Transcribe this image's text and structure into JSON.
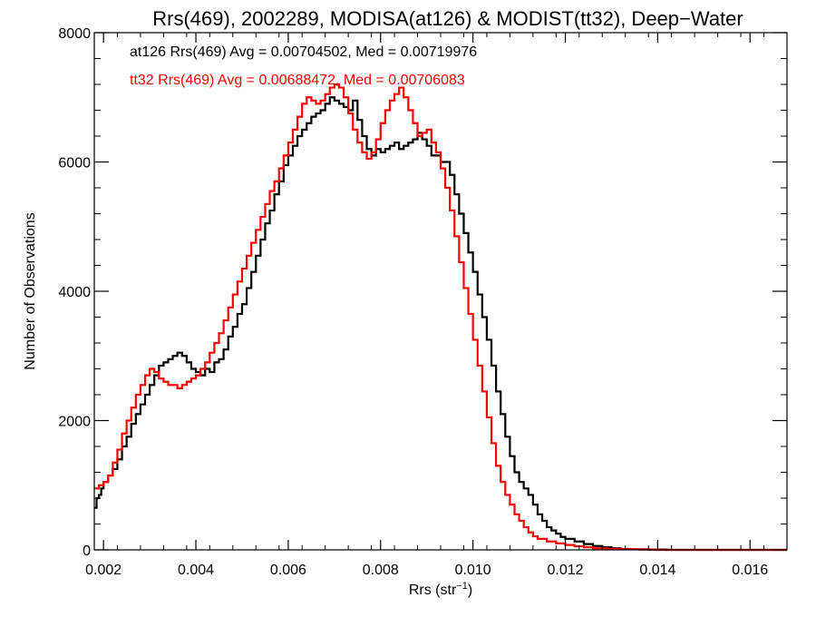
{
  "chart_data": {
    "type": "line",
    "step": true,
    "title": "Rrs(469), 2002289, MODISA(at126) & MODIST(tt32), Deep−Water",
    "xlabel": "Rrs (str",
    "xlabel_sup": "−1",
    "xlabel_suffix": ")",
    "ylabel": "Number of Observations",
    "xlim": [
      0.0018,
      0.0168
    ],
    "ylim": [
      0,
      8000
    ],
    "xticks": [
      0.002,
      0.004,
      0.006,
      0.008,
      0.01,
      0.012,
      0.014,
      0.016
    ],
    "xtick_labels": [
      "0.002",
      "0.004",
      "0.006",
      "0.008",
      "0.010",
      "0.012",
      "0.014",
      "0.016"
    ],
    "yticks": [
      0,
      2000,
      4000,
      6000,
      8000
    ],
    "ytick_labels": [
      "0",
      "2000",
      "4000",
      "6000",
      "8000"
    ],
    "grid": false,
    "legend": "top-left",
    "annotations": [
      {
        "text": "at126 Rrs(469) Avg = 0.00704502, Med = 0.00719976",
        "color": "#000000"
      },
      {
        "text": "tt32 Rrs(469) Avg = 0.00688472, Med = 0.00706083",
        "color": "#ff0000"
      }
    ],
    "series": [
      {
        "color": "#000000",
        "points": [
          [
            0.0018,
            650
          ],
          [
            0.00185,
            800
          ],
          [
            0.0019,
            850
          ],
          [
            0.00195,
            950
          ],
          [
            0.002,
            1050
          ],
          [
            0.0021,
            1150
          ],
          [
            0.0022,
            1250
          ],
          [
            0.0023,
            1400
          ],
          [
            0.0024,
            1600
          ],
          [
            0.0025,
            1750
          ],
          [
            0.0026,
            1950
          ],
          [
            0.0027,
            2100
          ],
          [
            0.0028,
            2250
          ],
          [
            0.0029,
            2400
          ],
          [
            0.003,
            2550
          ],
          [
            0.0031,
            2700
          ],
          [
            0.0032,
            2850
          ],
          [
            0.0033,
            2900
          ],
          [
            0.0034,
            2950
          ],
          [
            0.0035,
            3000
          ],
          [
            0.0036,
            3050
          ],
          [
            0.0037,
            3000
          ],
          [
            0.0038,
            2900
          ],
          [
            0.0039,
            2800
          ],
          [
            0.004,
            2750
          ],
          [
            0.0041,
            2700
          ],
          [
            0.0042,
            2800
          ],
          [
            0.0043,
            2750
          ],
          [
            0.0044,
            2900
          ],
          [
            0.0045,
            2950
          ],
          [
            0.0046,
            3100
          ],
          [
            0.0047,
            3300
          ],
          [
            0.0048,
            3450
          ],
          [
            0.0049,
            3650
          ],
          [
            0.005,
            3800
          ],
          [
            0.0051,
            4050
          ],
          [
            0.0052,
            4300
          ],
          [
            0.0053,
            4550
          ],
          [
            0.0054,
            4800
          ],
          [
            0.0055,
            5050
          ],
          [
            0.0056,
            5250
          ],
          [
            0.0057,
            5500
          ],
          [
            0.0058,
            5700
          ],
          [
            0.0059,
            5950
          ],
          [
            0.006,
            6100
          ],
          [
            0.0061,
            6250
          ],
          [
            0.0062,
            6400
          ],
          [
            0.0063,
            6500
          ],
          [
            0.0064,
            6600
          ],
          [
            0.0065,
            6700
          ],
          [
            0.0066,
            6750
          ],
          [
            0.0067,
            6800
          ],
          [
            0.0068,
            6900
          ],
          [
            0.0069,
            7000
          ],
          [
            0.007,
            6950
          ],
          [
            0.0071,
            6900
          ],
          [
            0.0072,
            6850
          ],
          [
            0.0073,
            6800
          ],
          [
            0.0074,
            6950
          ],
          [
            0.0075,
            6650
          ],
          [
            0.0076,
            6400
          ],
          [
            0.0077,
            6200
          ],
          [
            0.0078,
            6100
          ],
          [
            0.0079,
            6200
          ],
          [
            0.008,
            6150
          ],
          [
            0.0081,
            6200
          ],
          [
            0.0082,
            6250
          ],
          [
            0.0083,
            6300
          ],
          [
            0.0084,
            6200
          ],
          [
            0.0085,
            6250
          ],
          [
            0.0086,
            6300
          ],
          [
            0.0087,
            6350
          ],
          [
            0.0088,
            6450
          ],
          [
            0.0089,
            6350
          ],
          [
            0.009,
            6250
          ],
          [
            0.0091,
            6100
          ],
          [
            0.0092,
            6100
          ],
          [
            0.0093,
            6000
          ],
          [
            0.0094,
            6000
          ],
          [
            0.0095,
            5800
          ],
          [
            0.0096,
            5500
          ],
          [
            0.0097,
            5200
          ],
          [
            0.0098,
            4900
          ],
          [
            0.0099,
            4600
          ],
          [
            0.01,
            4300
          ],
          [
            0.0101,
            3950
          ],
          [
            0.0102,
            3600
          ],
          [
            0.0103,
            3250
          ],
          [
            0.0104,
            2850
          ],
          [
            0.0105,
            2450
          ],
          [
            0.0106,
            2100
          ],
          [
            0.0107,
            1750
          ],
          [
            0.0108,
            1450
          ],
          [
            0.0109,
            1200
          ],
          [
            0.011,
            1050
          ],
          [
            0.0111,
            950
          ],
          [
            0.0112,
            850
          ],
          [
            0.0113,
            700
          ],
          [
            0.0114,
            550
          ],
          [
            0.0115,
            450
          ],
          [
            0.0116,
            350
          ],
          [
            0.0117,
            300
          ],
          [
            0.0118,
            250
          ],
          [
            0.0119,
            200
          ],
          [
            0.012,
            170
          ],
          [
            0.0122,
            130
          ],
          [
            0.0124,
            90
          ],
          [
            0.0126,
            60
          ],
          [
            0.0128,
            40
          ],
          [
            0.013,
            25
          ],
          [
            0.0132,
            15
          ],
          [
            0.0134,
            10
          ],
          [
            0.0138,
            5
          ],
          [
            0.0142,
            0
          ],
          [
            0.0168,
            0
          ]
        ]
      },
      {
        "color": "#ff0000",
        "points": [
          [
            0.0018,
            950
          ],
          [
            0.0019,
            1000
          ],
          [
            0.002,
            1050
          ],
          [
            0.0021,
            1150
          ],
          [
            0.0022,
            1350
          ],
          [
            0.0023,
            1550
          ],
          [
            0.0024,
            1800
          ],
          [
            0.0025,
            2000
          ],
          [
            0.0026,
            2200
          ],
          [
            0.0027,
            2400
          ],
          [
            0.0028,
            2550
          ],
          [
            0.0029,
            2700
          ],
          [
            0.003,
            2800
          ],
          [
            0.0031,
            2750
          ],
          [
            0.0032,
            2650
          ],
          [
            0.0033,
            2600
          ],
          [
            0.0034,
            2550
          ],
          [
            0.0035,
            2550
          ],
          [
            0.0036,
            2500
          ],
          [
            0.0037,
            2550
          ],
          [
            0.0038,
            2600
          ],
          [
            0.0039,
            2650
          ],
          [
            0.004,
            2700
          ],
          [
            0.0041,
            2800
          ],
          [
            0.0042,
            2900
          ],
          [
            0.0043,
            3050
          ],
          [
            0.0044,
            3200
          ],
          [
            0.0045,
            3350
          ],
          [
            0.0046,
            3550
          ],
          [
            0.0047,
            3750
          ],
          [
            0.0048,
            3950
          ],
          [
            0.0049,
            4150
          ],
          [
            0.005,
            4350
          ],
          [
            0.0051,
            4550
          ],
          [
            0.0052,
            4750
          ],
          [
            0.0053,
            4950
          ],
          [
            0.0054,
            5150
          ],
          [
            0.0055,
            5350
          ],
          [
            0.0056,
            5550
          ],
          [
            0.0057,
            5700
          ],
          [
            0.0058,
            5900
          ],
          [
            0.0059,
            6100
          ],
          [
            0.006,
            6300
          ],
          [
            0.0061,
            6500
          ],
          [
            0.0062,
            6700
          ],
          [
            0.0063,
            6900
          ],
          [
            0.0064,
            7000
          ],
          [
            0.0065,
            6950
          ],
          [
            0.0066,
            6900
          ],
          [
            0.0067,
            6950
          ],
          [
            0.0068,
            7050
          ],
          [
            0.0069,
            7150
          ],
          [
            0.007,
            7200
          ],
          [
            0.0071,
            7150
          ],
          [
            0.0072,
            7000
          ],
          [
            0.0073,
            6750
          ],
          [
            0.0074,
            6500
          ],
          [
            0.0075,
            6300
          ],
          [
            0.0076,
            6150
          ],
          [
            0.0077,
            6050
          ],
          [
            0.0078,
            6150
          ],
          [
            0.0079,
            6350
          ],
          [
            0.008,
            6600
          ],
          [
            0.0081,
            6800
          ],
          [
            0.0082,
            6950
          ],
          [
            0.0083,
            7050
          ],
          [
            0.0084,
            7150
          ],
          [
            0.0085,
            7000
          ],
          [
            0.0086,
            6800
          ],
          [
            0.0087,
            6600
          ],
          [
            0.0088,
            6400
          ],
          [
            0.0089,
            6450
          ],
          [
            0.009,
            6500
          ],
          [
            0.0091,
            6300
          ],
          [
            0.0092,
            6150
          ],
          [
            0.0093,
            5900
          ],
          [
            0.0094,
            5600
          ],
          [
            0.0095,
            5250
          ],
          [
            0.0096,
            4850
          ],
          [
            0.0097,
            4450
          ],
          [
            0.0098,
            4050
          ],
          [
            0.0099,
            3650
          ],
          [
            0.01,
            3250
          ],
          [
            0.0101,
            2850
          ],
          [
            0.0102,
            2450
          ],
          [
            0.0103,
            2050
          ],
          [
            0.0104,
            1650
          ],
          [
            0.0105,
            1300
          ],
          [
            0.0106,
            1050
          ],
          [
            0.0107,
            850
          ],
          [
            0.0108,
            700
          ],
          [
            0.0109,
            550
          ],
          [
            0.011,
            450
          ],
          [
            0.0111,
            350
          ],
          [
            0.0112,
            270
          ],
          [
            0.0113,
            210
          ],
          [
            0.0114,
            170
          ],
          [
            0.0116,
            130
          ],
          [
            0.0118,
            100
          ],
          [
            0.012,
            75
          ],
          [
            0.0122,
            55
          ],
          [
            0.0124,
            40
          ],
          [
            0.0126,
            25
          ],
          [
            0.0129,
            15
          ],
          [
            0.0132,
            10
          ],
          [
            0.0136,
            5
          ],
          [
            0.014,
            0
          ],
          [
            0.0168,
            0
          ]
        ]
      }
    ]
  }
}
